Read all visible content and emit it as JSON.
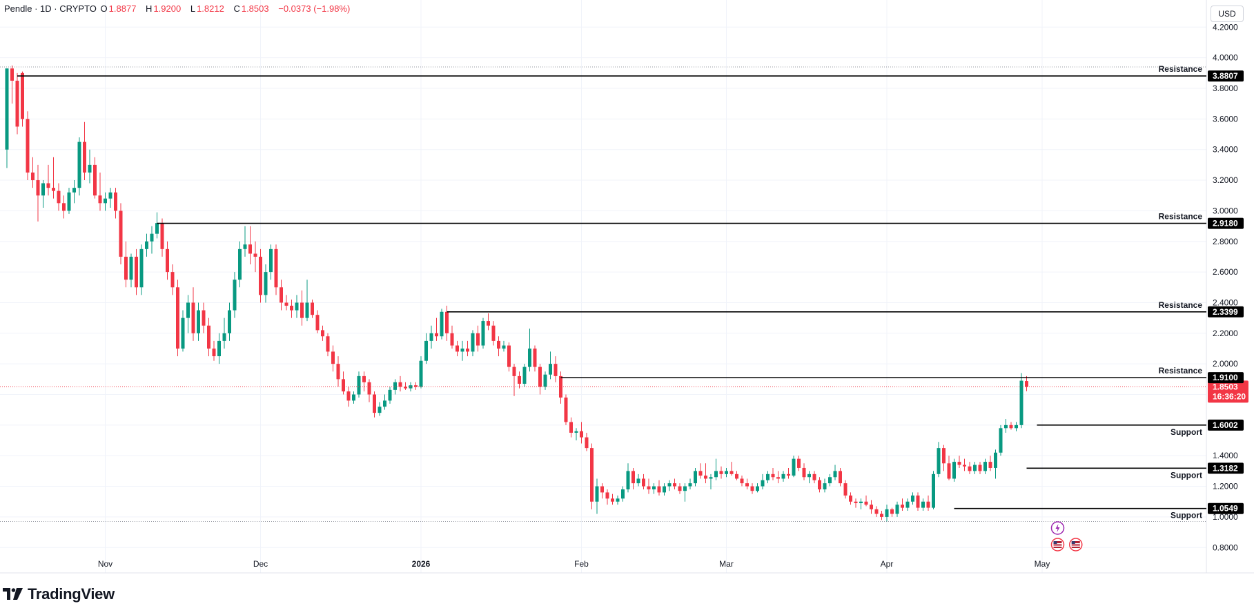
{
  "header": {
    "symbol": "Pendle · 1D · CRYPTO",
    "open_label": "O",
    "open": "1.8877",
    "high_label": "H",
    "high": "1.9200",
    "low_label": "L",
    "low": "1.8212",
    "close_label": "C",
    "close": "1.8503",
    "change": "−0.0373 (−1.98%)"
  },
  "currency_button": "USD",
  "brand": "TradingView",
  "colors": {
    "up": "#089981",
    "down": "#F23645",
    "level_line": "#000000",
    "grid": "#f0f3fa"
  },
  "chart_data": {
    "type": "candlestick",
    "ylim": [
      0.72,
      4.26
    ],
    "y_ticks": [
      "4.2000",
      "4.0000",
      "3.8000",
      "3.6000",
      "3.4000",
      "3.2000",
      "3.0000",
      "2.8000",
      "2.6000",
      "2.4000",
      "2.2000",
      "2.0000",
      "1.8000",
      "1.6000",
      "1.4000",
      "1.2000",
      "1.0000",
      "0.8000"
    ],
    "x_ticks": [
      {
        "label": "Nov",
        "index": 19
      },
      {
        "label": "Dec",
        "index": 49
      },
      {
        "label": "2026",
        "index": 80
      },
      {
        "label": "Feb",
        "index": 111
      },
      {
        "label": "Mar",
        "index": 139
      },
      {
        "label": "Apr",
        "index": 170
      },
      {
        "label": "May",
        "index": 200
      }
    ],
    "levels": [
      {
        "label": "Resistance",
        "value": "3.8807",
        "start_index": 2
      },
      {
        "label": "Resistance",
        "value": "2.9180",
        "start_index": 29
      },
      {
        "label": "Resistance",
        "value": "2.3399",
        "start_index": 85
      },
      {
        "label": "Resistance",
        "value": "1.9100",
        "start_index": 107
      },
      {
        "label": "Support",
        "value": "1.6002",
        "start_index": 199
      },
      {
        "label": "Support",
        "value": "1.3182",
        "start_index": 197
      },
      {
        "label": "Support",
        "value": "1.0549",
        "start_index": 183
      }
    ],
    "current_price": "1.8503",
    "countdown": "16:36:20",
    "dotted_high": 3.94,
    "dotted_low": 0.97,
    "candles": [
      [
        3.4,
        3.93,
        3.28,
        3.93
      ],
      [
        3.93,
        3.95,
        3.7,
        3.85
      ],
      [
        3.85,
        3.9,
        3.5,
        3.55
      ],
      [
        3.9,
        3.91,
        3.55,
        3.6
      ],
      [
        3.6,
        3.65,
        3.2,
        3.25
      ],
      [
        3.25,
        3.35,
        3.15,
        3.2
      ],
      [
        3.2,
        3.3,
        2.93,
        3.1
      ],
      [
        3.1,
        3.2,
        3.02,
        3.18
      ],
      [
        3.18,
        3.3,
        3.1,
        3.15
      ],
      [
        3.15,
        3.35,
        3.08,
        3.13
      ],
      [
        3.13,
        3.18,
        3.0,
        3.05
      ],
      [
        3.05,
        3.1,
        2.95,
        3.0
      ],
      [
        3.0,
        3.15,
        2.98,
        3.12
      ],
      [
        3.12,
        3.2,
        3.05,
        3.15
      ],
      [
        3.15,
        3.48,
        3.1,
        3.45
      ],
      [
        3.45,
        3.58,
        3.2,
        3.25
      ],
      [
        3.25,
        3.4,
        3.18,
        3.3
      ],
      [
        3.3,
        3.35,
        3.08,
        3.1
      ],
      [
        3.1,
        3.25,
        3.0,
        3.05
      ],
      [
        3.05,
        3.12,
        3.0,
        3.08
      ],
      [
        3.08,
        3.15,
        3.02,
        3.12
      ],
      [
        3.12,
        3.15,
        2.95,
        3.0
      ],
      [
        3.0,
        3.05,
        2.65,
        2.7
      ],
      [
        2.7,
        2.8,
        2.5,
        2.55
      ],
      [
        2.55,
        2.72,
        2.5,
        2.7
      ],
      [
        2.7,
        2.75,
        2.45,
        2.5
      ],
      [
        2.5,
        2.78,
        2.45,
        2.75
      ],
      [
        2.75,
        2.85,
        2.7,
        2.8
      ],
      [
        2.8,
        2.9,
        2.72,
        2.85
      ],
      [
        2.85,
        2.99,
        2.82,
        2.92
      ],
      [
        2.92,
        2.95,
        2.7,
        2.75
      ],
      [
        2.75,
        2.8,
        2.55,
        2.6
      ],
      [
        2.6,
        2.65,
        2.45,
        2.5
      ],
      [
        2.5,
        2.55,
        2.05,
        2.1
      ],
      [
        2.1,
        2.35,
        2.08,
        2.3
      ],
      [
        2.3,
        2.45,
        2.2,
        2.4
      ],
      [
        2.4,
        2.5,
        2.15,
        2.2
      ],
      [
        2.2,
        2.4,
        2.15,
        2.35
      ],
      [
        2.35,
        2.4,
        2.2,
        2.25
      ],
      [
        2.25,
        2.3,
        2.05,
        2.1
      ],
      [
        2.1,
        2.15,
        2.02,
        2.05
      ],
      [
        2.05,
        2.2,
        2.0,
        2.15
      ],
      [
        2.15,
        2.3,
        2.1,
        2.2
      ],
      [
        2.2,
        2.4,
        2.15,
        2.35
      ],
      [
        2.35,
        2.6,
        2.3,
        2.55
      ],
      [
        2.55,
        2.8,
        2.5,
        2.75
      ],
      [
        2.75,
        2.9,
        2.7,
        2.78
      ],
      [
        2.78,
        2.9,
        2.65,
        2.72
      ],
      [
        2.72,
        2.8,
        2.6,
        2.7
      ],
      [
        2.7,
        2.75,
        2.4,
        2.45
      ],
      [
        2.45,
        2.65,
        2.4,
        2.6
      ],
      [
        2.6,
        2.78,
        2.55,
        2.75
      ],
      [
        2.75,
        2.78,
        2.45,
        2.5
      ],
      [
        2.5,
        2.55,
        2.35,
        2.4
      ],
      [
        2.4,
        2.45,
        2.35,
        2.38
      ],
      [
        2.38,
        2.42,
        2.3,
        2.35
      ],
      [
        2.35,
        2.45,
        2.3,
        2.4
      ],
      [
        2.4,
        2.48,
        2.25,
        2.3
      ],
      [
        2.3,
        2.55,
        2.28,
        2.4
      ],
      [
        2.4,
        2.42,
        2.3,
        2.32
      ],
      [
        2.32,
        2.35,
        2.2,
        2.22
      ],
      [
        2.22,
        2.25,
        2.15,
        2.18
      ],
      [
        2.18,
        2.2,
        2.05,
        2.08
      ],
      [
        2.08,
        2.12,
        1.95,
        2.0
      ],
      [
        2.0,
        2.05,
        1.85,
        1.9
      ],
      [
        1.9,
        1.95,
        1.8,
        1.82
      ],
      [
        1.82,
        1.85,
        1.72,
        1.76
      ],
      [
        1.76,
        1.82,
        1.74,
        1.8
      ],
      [
        1.8,
        1.95,
        1.78,
        1.92
      ],
      [
        1.92,
        1.95,
        1.82,
        1.88
      ],
      [
        1.88,
        1.9,
        1.75,
        1.8
      ],
      [
        1.8,
        1.82,
        1.65,
        1.68
      ],
      [
        1.68,
        1.75,
        1.66,
        1.72
      ],
      [
        1.72,
        1.8,
        1.7,
        1.76
      ],
      [
        1.76,
        1.85,
        1.74,
        1.83
      ],
      [
        1.83,
        1.9,
        1.8,
        1.88
      ],
      [
        1.88,
        1.92,
        1.82,
        1.85
      ],
      [
        1.85,
        1.88,
        1.83,
        1.84
      ],
      [
        1.84,
        1.88,
        1.82,
        1.86
      ],
      [
        1.86,
        1.88,
        1.83,
        1.85
      ],
      [
        1.85,
        2.05,
        1.84,
        2.02
      ],
      [
        2.02,
        2.2,
        2.0,
        2.15
      ],
      [
        2.15,
        2.25,
        2.1,
        2.2
      ],
      [
        2.2,
        2.3,
        2.15,
        2.18
      ],
      [
        2.18,
        2.36,
        2.16,
        2.34
      ],
      [
        2.34,
        2.38,
        2.15,
        2.2
      ],
      [
        2.2,
        2.25,
        2.1,
        2.12
      ],
      [
        2.12,
        2.15,
        2.05,
        2.08
      ],
      [
        2.08,
        2.15,
        2.02,
        2.1
      ],
      [
        2.1,
        2.15,
        2.05,
        2.08
      ],
      [
        2.08,
        2.22,
        2.05,
        2.2
      ],
      [
        2.2,
        2.25,
        2.08,
        2.12
      ],
      [
        2.12,
        2.3,
        2.1,
        2.28
      ],
      [
        2.28,
        2.33,
        2.22,
        2.25
      ],
      [
        2.25,
        2.28,
        2.12,
        2.15
      ],
      [
        2.15,
        2.18,
        2.05,
        2.1
      ],
      [
        2.1,
        2.15,
        2.08,
        2.12
      ],
      [
        2.12,
        2.14,
        1.95,
        1.98
      ],
      [
        1.98,
        2.0,
        1.79,
        1.92
      ],
      [
        1.92,
        1.95,
        1.84,
        1.87
      ],
      [
        1.87,
        2.0,
        1.85,
        1.98
      ],
      [
        1.98,
        2.23,
        1.95,
        2.1
      ],
      [
        2.1,
        2.12,
        1.95,
        1.98
      ],
      [
        1.98,
        2.0,
        1.8,
        1.85
      ],
      [
        1.85,
        1.95,
        1.83,
        1.93
      ],
      [
        1.93,
        2.08,
        1.9,
        2.0
      ],
      [
        2.0,
        2.05,
        1.88,
        1.92
      ],
      [
        1.92,
        1.95,
        1.74,
        1.78
      ],
      [
        1.78,
        1.8,
        1.6,
        1.62
      ],
      [
        1.62,
        1.65,
        1.52,
        1.55
      ],
      [
        1.55,
        1.58,
        1.5,
        1.56
      ],
      [
        1.56,
        1.62,
        1.48,
        1.52
      ],
      [
        1.52,
        1.55,
        1.43,
        1.45
      ],
      [
        1.45,
        1.48,
        1.05,
        1.1
      ],
      [
        1.1,
        1.25,
        1.02,
        1.2
      ],
      [
        1.2,
        1.22,
        1.12,
        1.16
      ],
      [
        1.16,
        1.18,
        1.08,
        1.12
      ],
      [
        1.12,
        1.15,
        1.08,
        1.1
      ],
      [
        1.1,
        1.14,
        1.08,
        1.12
      ],
      [
        1.12,
        1.2,
        1.1,
        1.18
      ],
      [
        1.18,
        1.35,
        1.16,
        1.3
      ],
      [
        1.3,
        1.32,
        1.18,
        1.22
      ],
      [
        1.22,
        1.28,
        1.2,
        1.25
      ],
      [
        1.25,
        1.28,
        1.18,
        1.2
      ],
      [
        1.2,
        1.25,
        1.15,
        1.18
      ],
      [
        1.18,
        1.22,
        1.15,
        1.2
      ],
      [
        1.2,
        1.24,
        1.14,
        1.16
      ],
      [
        1.16,
        1.22,
        1.14,
        1.2
      ],
      [
        1.2,
        1.24,
        1.17,
        1.22
      ],
      [
        1.22,
        1.25,
        1.18,
        1.2
      ],
      [
        1.2,
        1.22,
        1.15,
        1.17
      ],
      [
        1.17,
        1.22,
        1.1,
        1.2
      ],
      [
        1.2,
        1.25,
        1.18,
        1.22
      ],
      [
        1.22,
        1.32,
        1.2,
        1.3
      ],
      [
        1.3,
        1.35,
        1.25,
        1.27
      ],
      [
        1.27,
        1.35,
        1.22,
        1.25
      ],
      [
        1.25,
        1.28,
        1.18,
        1.26
      ],
      [
        1.26,
        1.38,
        1.24,
        1.3
      ],
      [
        1.3,
        1.33,
        1.25,
        1.28
      ],
      [
        1.28,
        1.32,
        1.26,
        1.3
      ],
      [
        1.3,
        1.36,
        1.27,
        1.28
      ],
      [
        1.28,
        1.3,
        1.24,
        1.25
      ],
      [
        1.25,
        1.27,
        1.2,
        1.22
      ],
      [
        1.22,
        1.25,
        1.18,
        1.2
      ],
      [
        1.2,
        1.22,
        1.15,
        1.17
      ],
      [
        1.17,
        1.22,
        1.16,
        1.2
      ],
      [
        1.2,
        1.28,
        1.18,
        1.24
      ],
      [
        1.24,
        1.3,
        1.22,
        1.28
      ],
      [
        1.28,
        1.32,
        1.24,
        1.26
      ],
      [
        1.26,
        1.3,
        1.22,
        1.25
      ],
      [
        1.25,
        1.3,
        1.23,
        1.28
      ],
      [
        1.28,
        1.32,
        1.25,
        1.27
      ],
      [
        1.27,
        1.4,
        1.26,
        1.38
      ],
      [
        1.38,
        1.4,
        1.3,
        1.32
      ],
      [
        1.32,
        1.35,
        1.24,
        1.26
      ],
      [
        1.26,
        1.3,
        1.22,
        1.28
      ],
      [
        1.28,
        1.3,
        1.22,
        1.24
      ],
      [
        1.24,
        1.26,
        1.16,
        1.18
      ],
      [
        1.18,
        1.25,
        1.16,
        1.22
      ],
      [
        1.22,
        1.28,
        1.2,
        1.26
      ],
      [
        1.26,
        1.34,
        1.24,
        1.3
      ],
      [
        1.3,
        1.32,
        1.2,
        1.22
      ],
      [
        1.22,
        1.24,
        1.12,
        1.14
      ],
      [
        1.14,
        1.16,
        1.08,
        1.1
      ],
      [
        1.1,
        1.12,
        1.06,
        1.09
      ],
      [
        1.09,
        1.12,
        1.05,
        1.1
      ],
      [
        1.1,
        1.14,
        1.07,
        1.08
      ],
      [
        1.08,
        1.11,
        1.02,
        1.05
      ],
      [
        1.05,
        1.07,
        1.0,
        1.02
      ],
      [
        1.02,
        1.04,
        0.98,
        1.0
      ],
      [
        1.0,
        1.08,
        0.97,
        1.05
      ],
      [
        1.05,
        1.06,
        1.0,
        1.02
      ],
      [
        1.02,
        1.1,
        1.0,
        1.08
      ],
      [
        1.08,
        1.12,
        1.04,
        1.06
      ],
      [
        1.06,
        1.12,
        1.04,
        1.1
      ],
      [
        1.1,
        1.16,
        1.08,
        1.14
      ],
      [
        1.14,
        1.16,
        1.04,
        1.06
      ],
      [
        1.06,
        1.12,
        1.04,
        1.1
      ],
      [
        1.1,
        1.14,
        1.04,
        1.06
      ],
      [
        1.06,
        1.3,
        1.05,
        1.28
      ],
      [
        1.28,
        1.49,
        1.26,
        1.45
      ],
      [
        1.45,
        1.47,
        1.3,
        1.35
      ],
      [
        1.35,
        1.4,
        1.24,
        1.25
      ],
      [
        1.25,
        1.38,
        1.23,
        1.36
      ],
      [
        1.36,
        1.4,
        1.32,
        1.34
      ],
      [
        1.34,
        1.38,
        1.3,
        1.33
      ],
      [
        1.33,
        1.36,
        1.28,
        1.3
      ],
      [
        1.3,
        1.36,
        1.28,
        1.34
      ],
      [
        1.34,
        1.36,
        1.28,
        1.3
      ],
      [
        1.3,
        1.38,
        1.28,
        1.36
      ],
      [
        1.36,
        1.4,
        1.3,
        1.32
      ],
      [
        1.32,
        1.44,
        1.25,
        1.42
      ],
      [
        1.42,
        1.6,
        1.4,
        1.58
      ],
      [
        1.58,
        1.64,
        1.55,
        1.6
      ],
      [
        1.6,
        1.62,
        1.57,
        1.58
      ],
      [
        1.58,
        1.62,
        1.56,
        1.6
      ],
      [
        1.6,
        1.94,
        1.58,
        1.89
      ],
      [
        1.8877,
        1.92,
        1.8212,
        1.8503
      ]
    ]
  }
}
